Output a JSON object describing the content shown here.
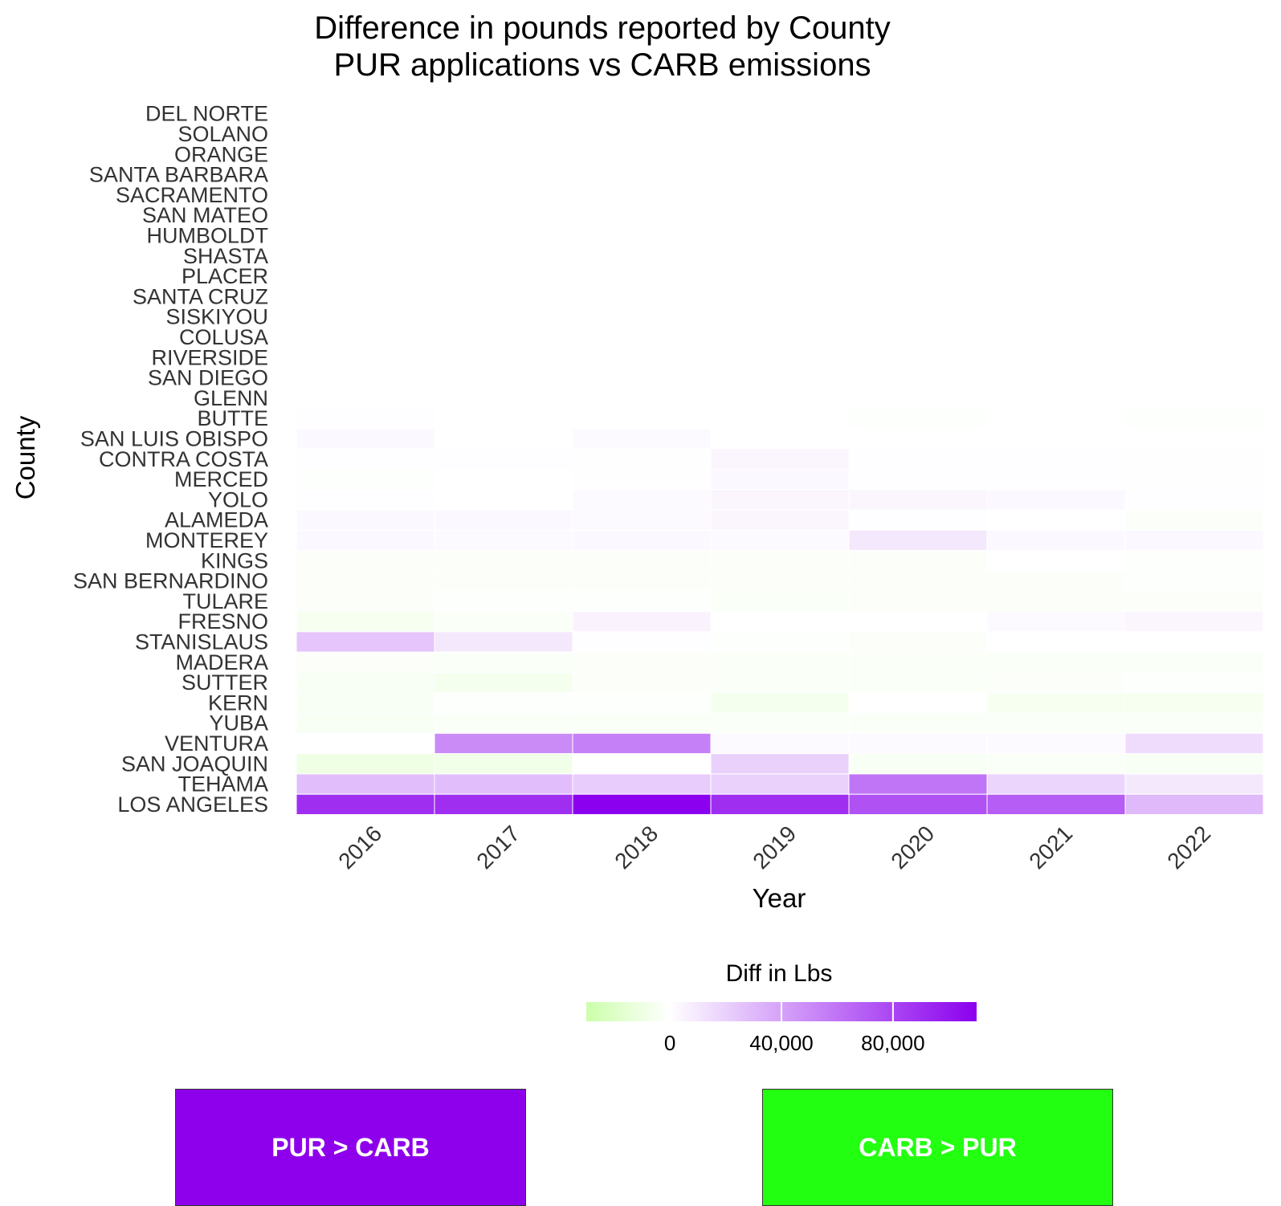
{
  "chart_data": {
    "type": "heatmap",
    "title": "Difference in pounds reported by County",
    "subtitle": "PUR applications vs CARB emissions",
    "xlabel": "Year",
    "ylabel": "County",
    "legend_title": "Diff in Lbs",
    "legend_placement": "bottom",
    "grid": false,
    "x": [
      "2016",
      "2017",
      "2018",
      "2019",
      "2020",
      "2021",
      "2022"
    ],
    "y": [
      "DEL NORTE",
      "SOLANO",
      "ORANGE",
      "SANTA BARBARA",
      "SACRAMENTO",
      "SAN MATEO",
      "HUMBOLDT",
      "SHASTA",
      "PLACER",
      "SANTA CRUZ",
      "SISKIYOU",
      "COLUSA",
      "RIVERSIDE",
      "SAN DIEGO",
      "GLENN",
      "BUTTE",
      "SAN LUIS OBISPO",
      "CONTRA COSTA",
      "MERCED",
      "YOLO",
      "ALAMEDA",
      "MONTEREY",
      "KINGS",
      "SAN BERNARDINO",
      "TULARE",
      "FRESNO",
      "STANISLAUS",
      "MADERA",
      "SUTTER",
      "KERN",
      "YUBA",
      "VENTURA",
      "SAN JOAQUIN",
      "TEHAMA",
      "LOS ANGELES"
    ],
    "z": [
      [
        null,
        null,
        null,
        null,
        null,
        null,
        null
      ],
      [
        null,
        null,
        null,
        null,
        null,
        null,
        null
      ],
      [
        null,
        null,
        null,
        null,
        null,
        null,
        null
      ],
      [
        null,
        null,
        null,
        null,
        null,
        null,
        null
      ],
      [
        null,
        null,
        null,
        null,
        null,
        null,
        null
      ],
      [
        null,
        null,
        null,
        null,
        null,
        null,
        null
      ],
      [
        null,
        null,
        null,
        null,
        null,
        null,
        null
      ],
      [
        null,
        null,
        null,
        null,
        null,
        null,
        null
      ],
      [
        null,
        null,
        null,
        null,
        null,
        null,
        null
      ],
      [
        null,
        null,
        null,
        null,
        null,
        null,
        null
      ],
      [
        null,
        null,
        null,
        null,
        null,
        null,
        null
      ],
      [
        null,
        null,
        null,
        null,
        null,
        null,
        null
      ],
      [
        null,
        null,
        null,
        null,
        null,
        null,
        null
      ],
      [
        null,
        null,
        null,
        null,
        null,
        null,
        null
      ],
      [
        null,
        null,
        null,
        null,
        null,
        null,
        null
      ],
      [
        1000,
        0,
        0,
        0,
        -1000,
        0,
        -1000
      ],
      [
        3000,
        0,
        2000,
        0,
        0,
        0,
        0
      ],
      [
        1000,
        1000,
        500,
        4000,
        1000,
        1000,
        500
      ],
      [
        -1000,
        0,
        500,
        3000,
        1000,
        1000,
        500
      ],
      [
        1000,
        0,
        2000,
        4000,
        4000,
        3000,
        1000
      ],
      [
        3000,
        3000,
        2000,
        4000,
        1000,
        0,
        -2000
      ],
      [
        3000,
        2000,
        3000,
        2000,
        10000,
        3000,
        3000
      ],
      [
        -2000,
        -2000,
        -2000,
        -2000,
        -2000,
        0,
        -1000
      ],
      [
        -2000,
        -2000,
        -2000,
        -2000,
        -2000,
        -2000,
        -1000
      ],
      [
        -2000,
        -1000,
        -1000,
        -3000,
        -2000,
        -2000,
        -2000
      ],
      [
        -5000,
        -3000,
        5000,
        0,
        0,
        2000,
        4000
      ],
      [
        25000,
        10000,
        1000,
        -1000,
        -2000,
        0,
        0
      ],
      [
        -2000,
        -3000,
        -2000,
        -3000,
        -3000,
        -3000,
        -3000
      ],
      [
        -4000,
        -6000,
        -2000,
        -3000,
        -3000,
        -2000,
        -1000
      ],
      [
        -4000,
        -1000,
        -1000,
        -6000,
        0,
        -5000,
        -5000
      ],
      [
        -4000,
        -3000,
        -3000,
        -3000,
        -3000,
        -3000,
        -3000
      ],
      [
        0,
        50000,
        55000,
        2000,
        2000,
        2000,
        15000
      ],
      [
        -10000,
        -8000,
        0,
        20000,
        -4000,
        -3000,
        -4000
      ],
      [
        28000,
        28000,
        22000,
        20000,
        60000,
        18000,
        10000
      ],
      [
        90000,
        90000,
        110000,
        90000,
        75000,
        70000,
        30000
      ]
    ],
    "colorbar": {
      "ticks": [
        0,
        40000,
        80000
      ],
      "tick_labels": [
        "0",
        "40,000",
        "80,000"
      ],
      "min": -30000,
      "max": 110000
    },
    "colors": {
      "low": "#ccffaa",
      "mid": "#ffffff",
      "high": "#8b00ee"
    }
  },
  "legend_boxes": {
    "pur": {
      "label": "PUR > CARB",
      "color": "#8e00eb"
    },
    "carb": {
      "label": "CARB > PUR",
      "color": "#22ff10"
    }
  }
}
